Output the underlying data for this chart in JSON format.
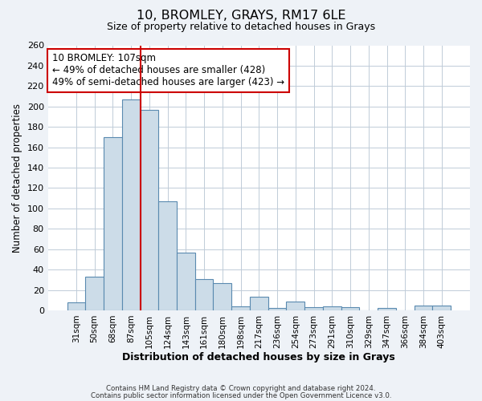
{
  "title": "10, BROMLEY, GRAYS, RM17 6LE",
  "subtitle": "Size of property relative to detached houses in Grays",
  "xlabel": "Distribution of detached houses by size in Grays",
  "ylabel": "Number of detached properties",
  "footer_lines": [
    "Contains HM Land Registry data © Crown copyright and database right 2024.",
    "Contains public sector information licensed under the Open Government Licence v3.0."
  ],
  "categories": [
    "31sqm",
    "50sqm",
    "68sqm",
    "87sqm",
    "105sqm",
    "124sqm",
    "143sqm",
    "161sqm",
    "180sqm",
    "198sqm",
    "217sqm",
    "236sqm",
    "254sqm",
    "273sqm",
    "291sqm",
    "310sqm",
    "329sqm",
    "347sqm",
    "366sqm",
    "384sqm",
    "403sqm"
  ],
  "bar_heights": [
    8,
    33,
    170,
    207,
    197,
    107,
    57,
    31,
    27,
    4,
    13,
    2,
    9,
    3,
    4,
    3,
    0,
    2,
    0,
    5,
    5
  ],
  "bar_color": "#ccdce8",
  "bar_edge_color": "#5a8ab0",
  "vline_x_index": 4,
  "vline_color": "#cc0000",
  "ylim": [
    0,
    260
  ],
  "yticks": [
    0,
    20,
    40,
    60,
    80,
    100,
    120,
    140,
    160,
    180,
    200,
    220,
    240,
    260
  ],
  "annotation_title": "10 BROMLEY: 107sqm",
  "annotation_line1": "← 49% of detached houses are smaller (428)",
  "annotation_line2": "49% of semi-detached houses are larger (423) →",
  "bg_color": "#eef2f7",
  "plot_bg_color": "#ffffff",
  "grid_color": "#c0ccd8"
}
